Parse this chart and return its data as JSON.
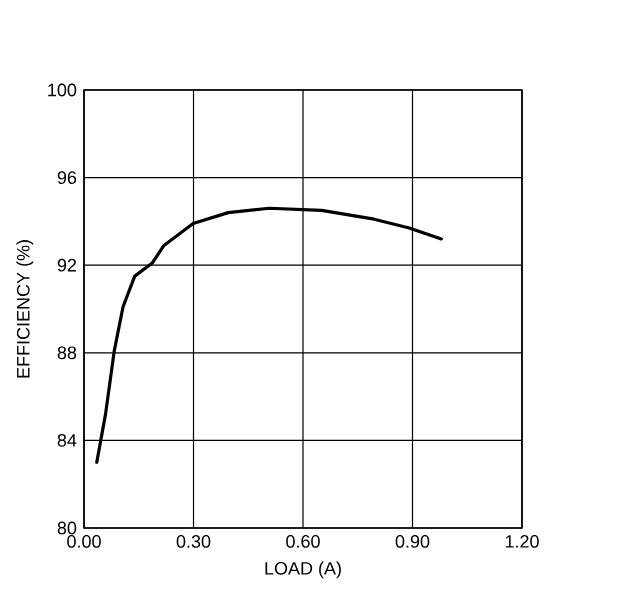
{
  "chart_data": {
    "type": "line",
    "xlabel": "LOAD (A)",
    "ylabel": "EFFICIENCY (%)",
    "xlim": [
      0,
      1.2
    ],
    "ylim": [
      80,
      100
    ],
    "xticks": [
      {
        "value": 0,
        "label": "0.00"
      },
      {
        "value": 0.3,
        "label": "0.30"
      },
      {
        "value": 0.6,
        "label": "0.60"
      },
      {
        "value": 0.9,
        "label": "0.90"
      },
      {
        "value": 1.2,
        "label": "1.20"
      }
    ],
    "yticks": [
      80,
      84,
      88,
      92,
      96,
      100
    ],
    "grid": true,
    "marker": "none",
    "line_style": "solid",
    "series": [
      {
        "color": "#000000",
        "x": [
          0.035,
          0.059,
          0.083,
          0.107,
          0.139,
          0.187,
          0.219,
          0.299,
          0.395,
          0.507,
          0.651,
          0.795,
          0.891,
          0.979
        ],
        "values": [
          83.0,
          85.2,
          88.1,
          90.1,
          91.5,
          92.1,
          92.9,
          93.9,
          94.4,
          94.6,
          94.5,
          94.1,
          93.7,
          93.2
        ]
      }
    ]
  }
}
